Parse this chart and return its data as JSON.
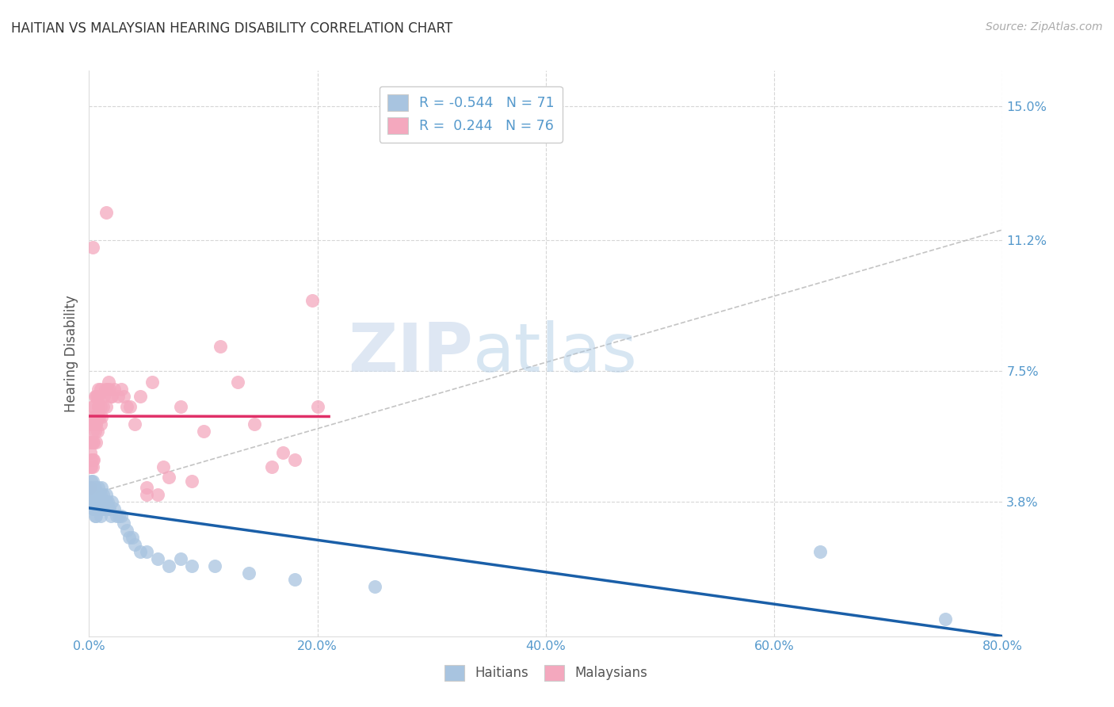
{
  "title": "HAITIAN VS MALAYSIAN HEARING DISABILITY CORRELATION CHART",
  "source": "Source: ZipAtlas.com",
  "ylabel": "Hearing Disability",
  "haitian_color": "#a8c4e0",
  "malaysian_color": "#f4a8be",
  "haitian_line_color": "#1a5fa8",
  "malaysian_line_color": "#e03068",
  "watermark_color": "#c5d8ec",
  "axis_label_color": "#5599cc",
  "title_color": "#333333",
  "grid_color": "#cccccc",
  "background_color": "#ffffff",
  "x_lim": [
    0.0,
    0.8
  ],
  "y_lim": [
    0.0,
    0.16
  ],
  "x_ticks": [
    0.0,
    0.2,
    0.4,
    0.6,
    0.8
  ],
  "x_tick_labels": [
    "0.0%",
    "20.0%",
    "40.0%",
    "60.0%",
    "80.0%"
  ],
  "y_ticks": [
    0.0,
    0.038,
    0.075,
    0.112,
    0.15
  ],
  "y_tick_labels": [
    "",
    "3.8%",
    "7.5%",
    "11.2%",
    "15.0%"
  ],
  "haitian_x": [
    0.001,
    0.001,
    0.001,
    0.002,
    0.002,
    0.002,
    0.002,
    0.003,
    0.003,
    0.003,
    0.003,
    0.003,
    0.004,
    0.004,
    0.004,
    0.004,
    0.005,
    0.005,
    0.005,
    0.005,
    0.005,
    0.006,
    0.006,
    0.006,
    0.006,
    0.007,
    0.007,
    0.007,
    0.008,
    0.008,
    0.008,
    0.009,
    0.009,
    0.009,
    0.01,
    0.01,
    0.01,
    0.011,
    0.011,
    0.012,
    0.012,
    0.013,
    0.014,
    0.015,
    0.015,
    0.016,
    0.017,
    0.018,
    0.019,
    0.02,
    0.022,
    0.024,
    0.026,
    0.028,
    0.03,
    0.033,
    0.035,
    0.038,
    0.04,
    0.045,
    0.05,
    0.06,
    0.07,
    0.08,
    0.09,
    0.11,
    0.14,
    0.18,
    0.25,
    0.64,
    0.75
  ],
  "haitian_y": [
    0.04,
    0.042,
    0.038,
    0.042,
    0.04,
    0.038,
    0.044,
    0.04,
    0.038,
    0.036,
    0.042,
    0.044,
    0.038,
    0.04,
    0.036,
    0.042,
    0.038,
    0.04,
    0.036,
    0.034,
    0.042,
    0.038,
    0.036,
    0.04,
    0.034,
    0.038,
    0.04,
    0.036,
    0.038,
    0.042,
    0.036,
    0.036,
    0.04,
    0.038,
    0.038,
    0.04,
    0.034,
    0.038,
    0.042,
    0.036,
    0.04,
    0.036,
    0.038,
    0.038,
    0.04,
    0.038,
    0.036,
    0.036,
    0.034,
    0.038,
    0.036,
    0.034,
    0.034,
    0.034,
    0.032,
    0.03,
    0.028,
    0.028,
    0.026,
    0.024,
    0.024,
    0.022,
    0.02,
    0.022,
    0.02,
    0.02,
    0.018,
    0.016,
    0.014,
    0.024,
    0.005
  ],
  "malaysian_x": [
    0.001,
    0.001,
    0.001,
    0.002,
    0.002,
    0.002,
    0.002,
    0.003,
    0.003,
    0.003,
    0.003,
    0.004,
    0.004,
    0.004,
    0.004,
    0.005,
    0.005,
    0.005,
    0.006,
    0.006,
    0.006,
    0.007,
    0.007,
    0.007,
    0.008,
    0.008,
    0.009,
    0.009,
    0.01,
    0.01,
    0.01,
    0.011,
    0.012,
    0.013,
    0.014,
    0.015,
    0.016,
    0.017,
    0.018,
    0.019,
    0.02,
    0.022,
    0.025,
    0.028,
    0.03,
    0.033,
    0.036,
    0.04,
    0.045,
    0.05,
    0.055,
    0.06,
    0.065,
    0.07,
    0.08,
    0.09,
    0.1,
    0.115,
    0.13,
    0.145,
    0.16,
    0.18,
    0.2,
    0.001,
    0.002,
    0.003,
    0.003,
    0.004,
    0.005,
    0.006,
    0.007,
    0.008,
    0.015,
    0.05,
    0.17,
    0.195
  ],
  "malaysian_y": [
    0.048,
    0.052,
    0.042,
    0.05,
    0.055,
    0.048,
    0.06,
    0.05,
    0.055,
    0.048,
    0.065,
    0.055,
    0.06,
    0.05,
    0.062,
    0.058,
    0.062,
    0.068,
    0.055,
    0.06,
    0.068,
    0.062,
    0.068,
    0.058,
    0.065,
    0.07,
    0.062,
    0.068,
    0.06,
    0.065,
    0.07,
    0.062,
    0.065,
    0.068,
    0.07,
    0.065,
    0.07,
    0.072,
    0.07,
    0.068,
    0.068,
    0.07,
    0.068,
    0.07,
    0.068,
    0.065,
    0.065,
    0.06,
    0.068,
    0.042,
    0.072,
    0.04,
    0.048,
    0.045,
    0.065,
    0.044,
    0.058,
    0.082,
    0.072,
    0.06,
    0.048,
    0.05,
    0.065,
    0.055,
    0.06,
    0.058,
    0.11,
    0.065,
    0.062,
    0.06,
    0.068,
    0.065,
    0.12,
    0.04,
    0.052,
    0.095
  ],
  "ref_line_x": [
    0.0,
    0.8
  ],
  "ref_line_y": [
    0.04,
    0.115
  ]
}
